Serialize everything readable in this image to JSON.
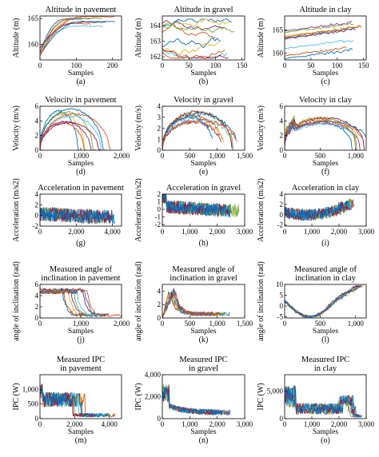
{
  "palette": [
    "#0072BD",
    "#D95319",
    "#EDB120",
    "#7E2F8E",
    "#77AC30",
    "#4DBEEE",
    "#A2142F"
  ],
  "chart_data": [
    {
      "id": "a",
      "type": "line",
      "title": [
        "Altitude in pavement"
      ],
      "ylabel": "Altitude (m)",
      "xlabel": "Samples",
      "panel_label": "(a)",
      "xlim": [
        0,
        225
      ],
      "ylim": [
        157,
        165.5
      ],
      "xticks": [
        0,
        100,
        200
      ],
      "xtick_labels": [
        "0",
        "100",
        "200"
      ],
      "yticks": [
        160,
        165
      ],
      "ytick_labels": [
        "160",
        "165"
      ],
      "kind": "alt_pave",
      "n_series": 9
    },
    {
      "id": "b",
      "type": "line",
      "title": [
        "Altitude in gravel"
      ],
      "ylabel": "Altitude (m)",
      "xlabel": "Samples",
      "panel_label": "(b)",
      "xlim": [
        0,
        155
      ],
      "ylim": [
        161.8,
        164.6
      ],
      "xticks": [
        0,
        50,
        100,
        150
      ],
      "xtick_labels": [
        "0",
        "50",
        "100",
        "150"
      ],
      "yticks": [
        162,
        163,
        164
      ],
      "ytick_labels": [
        "162",
        "163",
        "164"
      ],
      "kind": "alt_grav",
      "n_series": 10
    },
    {
      "id": "c",
      "type": "line",
      "title": [
        "Altitude in clay"
      ],
      "ylabel": "Altitude (m)",
      "xlabel": "Samples",
      "panel_label": "(c)",
      "xlim": [
        0,
        155
      ],
      "ylim": [
        158.5,
        168
      ],
      "xticks": [
        0,
        50,
        100,
        150
      ],
      "xtick_labels": [
        "0",
        "50",
        "100",
        "150"
      ],
      "yticks": [
        160,
        165
      ],
      "ytick_labels": [
        "160",
        "165"
      ],
      "kind": "alt_clay",
      "n_series": 9
    },
    {
      "id": "d",
      "type": "line",
      "title": [
        "Velocity in pavement"
      ],
      "ylabel": "Velocity (m/s)",
      "xlabel": "Samples",
      "panel_label": "(d)",
      "xlim": [
        0,
        2000
      ],
      "ylim": [
        0,
        6
      ],
      "xticks": [
        0,
        1000,
        2000
      ],
      "xtick_labels": [
        "0",
        "1,000",
        "2,000"
      ],
      "yticks": [
        0,
        2,
        4,
        6
      ],
      "ytick_labels": [
        "0",
        "2",
        "4",
        "6"
      ],
      "kind": "vel_pave",
      "n_series": 9
    },
    {
      "id": "e",
      "type": "line",
      "title": [
        "Velocity in gravel"
      ],
      "ylabel": "Velocity (m/s)",
      "xlabel": "Samples",
      "panel_label": "(e)",
      "xlim": [
        0,
        1500
      ],
      "ylim": [
        0,
        4
      ],
      "xticks": [
        0,
        500,
        1000,
        1500
      ],
      "xtick_labels": [
        "0",
        "500",
        "1,000",
        "1,500"
      ],
      "yticks": [
        0,
        1,
        2,
        3,
        4
      ],
      "ytick_labels": [
        "0",
        "1",
        "2",
        "3",
        "4"
      ],
      "kind": "vel_grav",
      "n_series": 9
    },
    {
      "id": "f",
      "type": "line",
      "title": [
        "Velocity in clay"
      ],
      "ylabel": "Velocity (m/s)",
      "xlabel": "Samples",
      "panel_label": "(f)",
      "xlim": [
        0,
        1150
      ],
      "ylim": [
        0,
        6
      ],
      "xticks": [
        0,
        500,
        1000
      ],
      "xtick_labels": [
        "0",
        "500",
        "1,000"
      ],
      "yticks": [
        0,
        2,
        4,
        6
      ],
      "ytick_labels": [
        "0",
        "2",
        "4",
        "6"
      ],
      "kind": "vel_clay",
      "n_series": 9
    },
    {
      "id": "g",
      "type": "line",
      "title": [
        "Acceleration in pavement"
      ],
      "ylabel": "Acceleration (m/s2)",
      "xlabel": "",
      "panel_label": "(g)",
      "xlim": [
        0,
        4500
      ],
      "ylim": [
        -2,
        4
      ],
      "xticks": [
        0,
        2000,
        4000
      ],
      "xtick_labels": [
        "0",
        "2,000",
        "4,000"
      ],
      "yticks": [
        -2,
        0,
        2,
        4
      ],
      "ytick_labels": [
        "-2",
        "0",
        "2",
        "4"
      ],
      "kind": "acc_pave",
      "n_series": 8
    },
    {
      "id": "h",
      "type": "line",
      "title": [
        "Acceleration in gravel"
      ],
      "ylabel": "Acceleration (m/s2)",
      "xlabel": "",
      "panel_label": "(h)",
      "xlim": [
        0,
        3000
      ],
      "ylim": [
        -2.2,
        2
      ],
      "xticks": [
        0,
        1000,
        2000,
        3000
      ],
      "xtick_labels": [
        "0",
        "1,000",
        "2,000",
        "3,000"
      ],
      "yticks": [
        -2,
        -1,
        0,
        1,
        2
      ],
      "ytick_labels": [
        "-2",
        "-1",
        "0",
        "1",
        "2"
      ],
      "kind": "acc_grav",
      "n_series": 8
    },
    {
      "id": "i",
      "type": "line",
      "title": [
        "Acceleration in clay"
      ],
      "ylabel": "Acceleration (m/s2)",
      "xlabel": "",
      "panel_label": "(i)",
      "xlim": [
        0,
        3000
      ],
      "ylim": [
        -2.2,
        4
      ],
      "xticks": [
        0,
        1000,
        2000,
        3000
      ],
      "xtick_labels": [
        "0",
        "1,000",
        "2,000",
        "3,000"
      ],
      "yticks": [
        -2,
        0,
        2,
        4
      ],
      "ytick_labels": [
        "-2",
        "0",
        "2",
        "4"
      ],
      "kind": "acc_clay",
      "n_series": 8
    },
    {
      "id": "j",
      "type": "line",
      "title": [
        "Measured angle of",
        "inclination in pavement"
      ],
      "ylabel": "angle of inclination (rad)",
      "xlabel": "Samples",
      "panel_label": "(j)",
      "xlim": [
        0,
        2000
      ],
      "ylim": [
        0,
        6
      ],
      "xticks": [
        0,
        1000,
        2000
      ],
      "xtick_labels": [
        "0",
        "1,000",
        "2,000"
      ],
      "yticks": [
        0,
        2,
        4,
        6
      ],
      "ytick_labels": [
        "0",
        "2",
        "4",
        "6"
      ],
      "kind": "ang_pave",
      "n_series": 9
    },
    {
      "id": "k",
      "type": "line",
      "title": [
        "Measured angle of",
        "inclination in gravel"
      ],
      "ylabel": "angle of inclination (rad)",
      "xlabel": "Samples",
      "panel_label": "(k)",
      "xlim": [
        0,
        1500
      ],
      "ylim": [
        0,
        5
      ],
      "xticks": [
        0,
        500,
        1000,
        1500
      ],
      "xtick_labels": [
        "0",
        "500",
        "1,000",
        "1,500"
      ],
      "yticks": [
        0,
        2,
        4
      ],
      "ytick_labels": [
        "0",
        "2",
        "4"
      ],
      "kind": "ang_grav",
      "n_series": 9
    },
    {
      "id": "l",
      "type": "line",
      "title": [
        "Measured angle of",
        "inclination in clay"
      ],
      "ylabel": "angle of inclination (rad)",
      "xlabel": "Samples",
      "panel_label": "(l)",
      "xlim": [
        0,
        1150
      ],
      "ylim": [
        -5.5,
        10
      ],
      "xticks": [
        0,
        500,
        1000
      ],
      "xtick_labels": [
        "0",
        "500",
        "1,000"
      ],
      "yticks": [
        -5,
        0,
        5,
        10
      ],
      "ytick_labels": [
        "-5",
        "0",
        "5",
        "10"
      ],
      "kind": "ang_clay",
      "n_series": 8
    },
    {
      "id": "m",
      "type": "line",
      "title": [
        "Measured IPC",
        "in pavement"
      ],
      "ylabel": "IPC (W)",
      "xlabel": "Samples",
      "panel_label": "(m)",
      "xlim": [
        0,
        4700
      ],
      "ylim": [
        0,
        1500
      ],
      "xticks": [
        0,
        2000,
        4000
      ],
      "xtick_labels": [
        "0",
        "2,000",
        "4,000"
      ],
      "yticks": [
        0,
        500,
        1000
      ],
      "ytick_labels": [
        "0",
        "500",
        "1,000"
      ],
      "kind": "ipc_pave",
      "n_series": 8
    },
    {
      "id": "n",
      "type": "line",
      "title": [
        "Measured IPC",
        "in gravel"
      ],
      "ylabel": "IPC (W)",
      "xlabel": "Samples",
      "panel_label": "(n)",
      "xlim": [
        0,
        3000
      ],
      "ylim": [
        0,
        4000
      ],
      "xticks": [
        0,
        1000,
        2000,
        3000
      ],
      "xtick_labels": [
        "0",
        "1,000",
        "2,000",
        "3,000"
      ],
      "yticks": [
        0,
        2000,
        4000
      ],
      "ytick_labels": [
        "0",
        "2,000",
        "4,000"
      ],
      "kind": "ipc_grav",
      "n_series": 8
    },
    {
      "id": "o",
      "type": "line",
      "title": [
        "Measured IPC",
        "in clay"
      ],
      "ylabel": "IPC (W)",
      "xlabel": "Samples",
      "panel_label": "(o)",
      "xlim": [
        0,
        3000
      ],
      "ylim": [
        0,
        8000
      ],
      "xticks": [
        0,
        1000,
        2000,
        3000
      ],
      "xtick_labels": [
        "0",
        "1,000",
        "2,000",
        "3,000"
      ],
      "yticks": [
        0,
        5000
      ],
      "ytick_labels": [
        "0",
        "5,000"
      ],
      "kind": "ipc_clay",
      "n_series": 8
    }
  ]
}
